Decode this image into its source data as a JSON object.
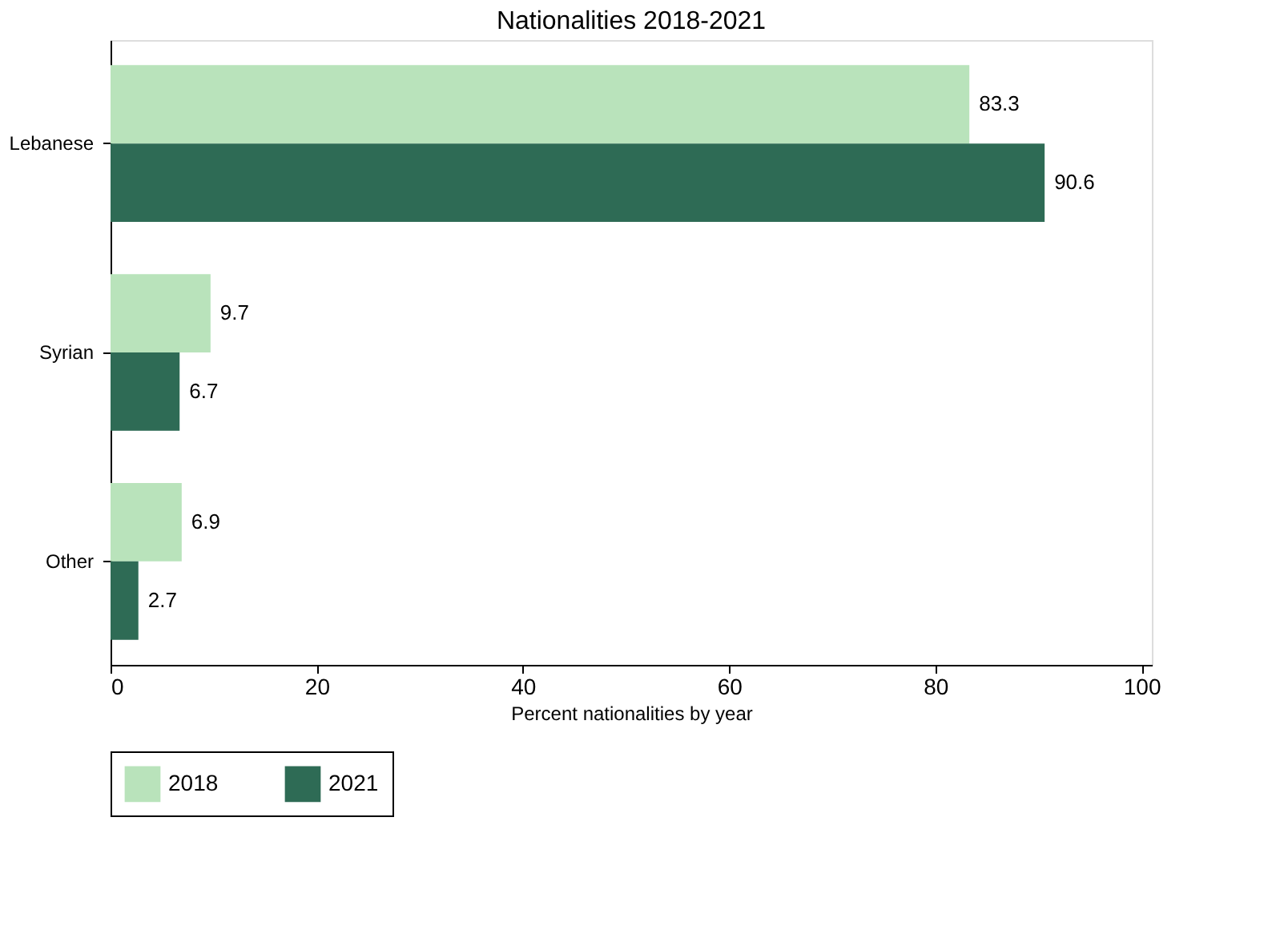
{
  "chart_data": {
    "type": "bar",
    "orientation": "horizontal",
    "title": "Nationalities 2018-2021",
    "xlabel": "Percent nationalities by year",
    "categories": [
      "Lebanese",
      "Syrian",
      "Other"
    ],
    "series": [
      {
        "name": "2018",
        "color": "#b9e3bb",
        "values": [
          83.3,
          9.7,
          6.9
        ]
      },
      {
        "name": "2021",
        "color": "#2e6b55",
        "values": [
          90.6,
          6.7,
          2.7
        ]
      }
    ],
    "xlim": [
      0,
      101
    ],
    "xticks": [
      0,
      20,
      40,
      60,
      80,
      100
    ],
    "data_labels": true,
    "grid": false,
    "legend": "bottom"
  }
}
